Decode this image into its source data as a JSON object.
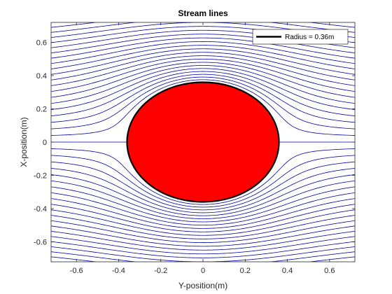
{
  "chart_data": {
    "type": "line",
    "title": "Stream lines",
    "xlabel": "Y-position(m)",
    "ylabel": "X-position(m)",
    "xlim": [
      -0.72,
      0.72
    ],
    "ylim": [
      -0.72,
      0.72
    ],
    "xticks": [
      -0.6,
      -0.4,
      -0.2,
      0,
      0.2,
      0.4,
      0.6
    ],
    "yticks": [
      -0.6,
      -0.4,
      -0.2,
      0,
      0.2,
      0.4,
      0.6
    ],
    "xtick_labels": [
      "-0.6",
      "-0.4",
      "-0.2",
      "0",
      "0.2",
      "0.4",
      "0.6"
    ],
    "ytick_labels": [
      "-0.6",
      "-0.4",
      "-0.2",
      "0",
      "0.2",
      "0.4",
      "0.6"
    ],
    "grid": false,
    "legend_position": "top-right",
    "cylinder": {
      "radius": 0.36,
      "center": [
        0,
        0
      ],
      "fill_color": "#ff0000",
      "edge_color": "#000000"
    },
    "streamlines": {
      "color": "#0000aa",
      "far_field_positions": [
        -0.66,
        -0.63,
        -0.6,
        -0.57,
        -0.54,
        -0.51,
        -0.48,
        -0.45,
        -0.42,
        -0.39,
        -0.36,
        -0.33,
        -0.3,
        -0.27,
        -0.24,
        -0.21,
        -0.18,
        -0.15,
        -0.12,
        -0.09,
        -0.06,
        -0.03,
        0,
        0.03,
        0.06,
        0.09,
        0.12,
        0.15,
        0.18,
        0.21,
        0.24,
        0.27,
        0.3,
        0.33,
        0.36,
        0.39,
        0.42,
        0.45,
        0.48,
        0.51,
        0.54,
        0.57,
        0.6,
        0.63,
        0.66
      ]
    },
    "legend": {
      "entries": [
        {
          "label": "Radius = 0.36m",
          "color": "#000000"
        }
      ]
    }
  }
}
